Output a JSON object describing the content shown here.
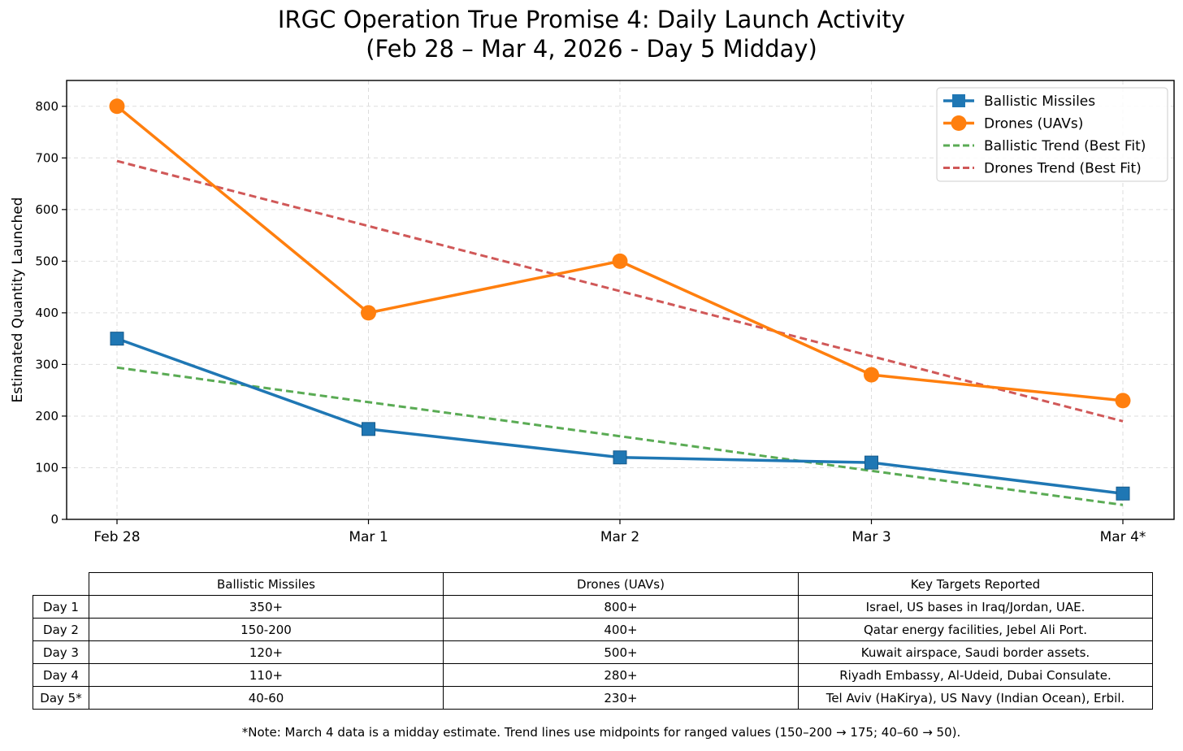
{
  "chart_data": {
    "type": "line",
    "title": "IRGC Operation True Promise 4: Daily Launch Activity",
    "subtitle": "(Feb 28 – Mar 4, 2026 - Day 5 Midday)",
    "xlabel": "",
    "ylabel": "Estimated Quantity Launched",
    "categories": [
      "Feb 28",
      "Mar 1",
      "Mar 2",
      "Mar 3",
      "Mar 4*"
    ],
    "ylim": [
      0,
      850
    ],
    "yticks": [
      0,
      100,
      200,
      300,
      400,
      500,
      600,
      700,
      800
    ],
    "grid": true,
    "legend_position": "top-right",
    "series": [
      {
        "name": "Ballistic Missiles",
        "values": [
          350,
          175,
          120,
          110,
          50
        ],
        "color": "#1f77b4",
        "marker": "square",
        "style": "solid"
      },
      {
        "name": "Drones (UAVs)",
        "values": [
          800,
          400,
          500,
          280,
          230
        ],
        "color": "#ff7f0e",
        "marker": "circle",
        "style": "solid"
      },
      {
        "name": "Ballistic Trend (Best Fit)",
        "values": [
          294,
          227,
          161,
          94,
          28
        ],
        "color": "#5aab54",
        "marker": "none",
        "style": "dashed"
      },
      {
        "name": "Drones Trend (Best Fit)",
        "values": [
          694,
          568,
          442,
          316,
          190
        ],
        "color": "#d05858",
        "marker": "none",
        "style": "dashed"
      }
    ]
  },
  "table": {
    "headers": [
      "Ballistic Missiles",
      "Drones (UAVs)",
      "Key Targets Reported"
    ],
    "rows": [
      {
        "label": "Day 1",
        "cells": [
          "350+",
          "800+",
          "Israel, US bases in Iraq/Jordan, UAE."
        ]
      },
      {
        "label": "Day 2",
        "cells": [
          "150-200",
          "400+",
          "Qatar energy facilities, Jebel Ali Port."
        ]
      },
      {
        "label": "Day 3",
        "cells": [
          "120+",
          "500+",
          "Kuwait airspace, Saudi border assets."
        ]
      },
      {
        "label": "Day 4",
        "cells": [
          "110+",
          "280+",
          "Riyadh Embassy, Al-Udeid, Dubai Consulate."
        ]
      },
      {
        "label": "Day 5*",
        "cells": [
          "40-60",
          "230+",
          "Tel Aviv (HaKirya), US Navy (Indian Ocean), Erbil."
        ]
      }
    ]
  },
  "note": "*Note: March 4 data is a midday estimate. Trend lines use midpoints for ranged values (150–200 → 175; 40–60 → 50)."
}
